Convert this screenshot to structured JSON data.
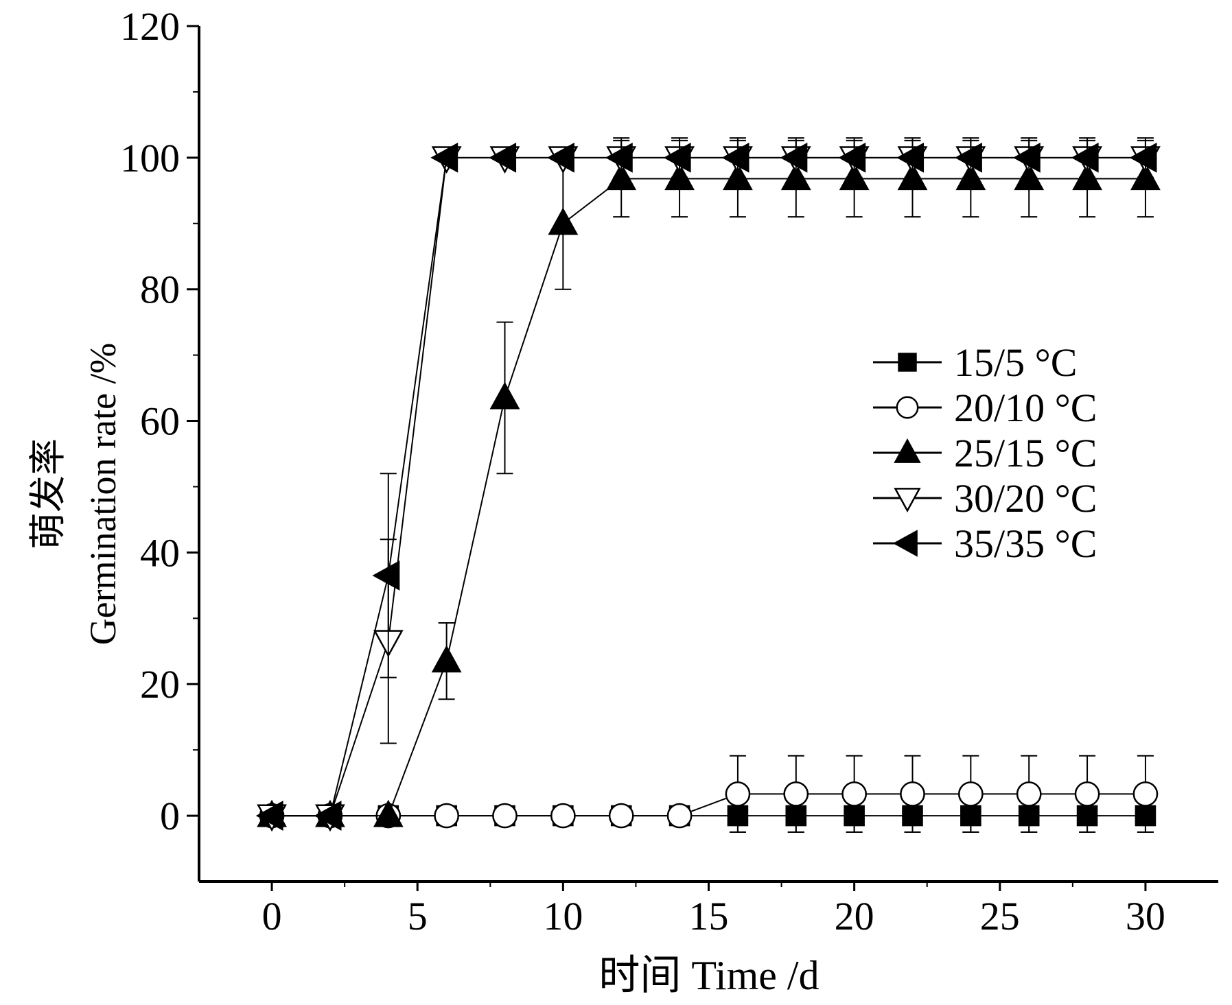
{
  "chart_data": {
    "type": "line",
    "xlabel": "时间 Time /d",
    "ylabel_cn": "萌发率",
    "ylabel_en": "Germination rate /%",
    "xlim": [
      -2.5,
      32.5
    ],
    "ylim": [
      -10,
      120
    ],
    "xticks": [
      0,
      5,
      10,
      15,
      20,
      25,
      30
    ],
    "yticks": [
      0,
      20,
      40,
      60,
      80,
      100,
      120
    ],
    "grid": false,
    "legend_position": "right",
    "series": [
      {
        "name": "15/5 °C",
        "marker": "square-filled",
        "points": [
          [
            0,
            0
          ],
          [
            2,
            0
          ],
          [
            4,
            0
          ],
          [
            6,
            0
          ],
          [
            8,
            0
          ],
          [
            10,
            0
          ],
          [
            12,
            0
          ],
          [
            14,
            0
          ],
          [
            16,
            0
          ],
          [
            18,
            0
          ],
          [
            20,
            0
          ],
          [
            22,
            0
          ],
          [
            24,
            0
          ],
          [
            26,
            0
          ],
          [
            28,
            0
          ],
          [
            30,
            0
          ]
        ],
        "errors": [
          [
            16,
            2.5
          ],
          [
            18,
            2.5
          ],
          [
            20,
            2.5
          ],
          [
            22,
            2.5
          ],
          [
            24,
            2.5
          ],
          [
            26,
            2.5
          ],
          [
            28,
            2.5
          ],
          [
            30,
            2.5
          ]
        ]
      },
      {
        "name": "20/10 °C",
        "marker": "circle-open",
        "points": [
          [
            0,
            0
          ],
          [
            2,
            0
          ],
          [
            4,
            0
          ],
          [
            6,
            0
          ],
          [
            8,
            0
          ],
          [
            10,
            0
          ],
          [
            12,
            0
          ],
          [
            14,
            0
          ],
          [
            16,
            3.3
          ],
          [
            18,
            3.3
          ],
          [
            20,
            3.3
          ],
          [
            22,
            3.3
          ],
          [
            24,
            3.3
          ],
          [
            26,
            3.3
          ],
          [
            28,
            3.3
          ],
          [
            30,
            3.3
          ]
        ],
        "errors": [
          [
            16,
            5.8
          ],
          [
            18,
            5.8
          ],
          [
            20,
            5.8
          ],
          [
            22,
            5.8
          ],
          [
            24,
            5.8
          ],
          [
            26,
            5.8
          ],
          [
            28,
            5.8
          ],
          [
            30,
            5.8
          ]
        ]
      },
      {
        "name": "25/15 °C",
        "marker": "triangle-up-filled",
        "points": [
          [
            0,
            0
          ],
          [
            2,
            0
          ],
          [
            4,
            0
          ],
          [
            6,
            23.5
          ],
          [
            8,
            63.5
          ],
          [
            10,
            90
          ],
          [
            12,
            96.8
          ],
          [
            14,
            96.8
          ],
          [
            16,
            96.8
          ],
          [
            18,
            96.8
          ],
          [
            20,
            96.8
          ],
          [
            22,
            96.8
          ],
          [
            24,
            96.8
          ],
          [
            26,
            96.8
          ],
          [
            28,
            96.8
          ],
          [
            30,
            96.8
          ]
        ],
        "errors": [
          [
            6,
            5.8
          ],
          [
            8,
            11.5
          ],
          [
            10,
            10
          ],
          [
            12,
            5.8
          ],
          [
            14,
            5.8
          ],
          [
            16,
            5.8
          ],
          [
            18,
            5.8
          ],
          [
            20,
            5.8
          ],
          [
            22,
            5.8
          ],
          [
            24,
            5.8
          ],
          [
            26,
            5.8
          ],
          [
            28,
            5.8
          ],
          [
            30,
            5.8
          ]
        ]
      },
      {
        "name": "30/20 °C",
        "marker": "triangle-down-open",
        "points": [
          [
            0,
            0
          ],
          [
            2,
            0
          ],
          [
            4,
            26.5
          ],
          [
            6,
            100
          ],
          [
            8,
            100
          ],
          [
            10,
            100
          ],
          [
            12,
            100
          ],
          [
            14,
            100
          ],
          [
            16,
            100
          ],
          [
            18,
            100
          ],
          [
            20,
            100
          ],
          [
            22,
            100
          ],
          [
            24,
            100
          ],
          [
            26,
            100
          ],
          [
            28,
            100
          ],
          [
            30,
            100
          ]
        ],
        "errors": [
          [
            4,
            15.5
          ]
        ]
      },
      {
        "name": "35/35 °C",
        "marker": "triangle-left-filled",
        "points": [
          [
            0,
            0
          ],
          [
            2,
            0
          ],
          [
            4,
            36.5
          ],
          [
            6,
            100
          ],
          [
            8,
            100
          ],
          [
            10,
            100
          ],
          [
            12,
            100
          ],
          [
            14,
            100
          ],
          [
            16,
            100
          ],
          [
            18,
            100
          ],
          [
            20,
            100
          ],
          [
            22,
            100
          ],
          [
            24,
            100
          ],
          [
            26,
            100
          ],
          [
            28,
            100
          ],
          [
            30,
            100
          ]
        ],
        "errors": [
          [
            4,
            15.5
          ],
          [
            12,
            3
          ],
          [
            14,
            3
          ],
          [
            16,
            3
          ],
          [
            18,
            3
          ],
          [
            20,
            3
          ],
          [
            22,
            3
          ],
          [
            24,
            3
          ],
          [
            26,
            3
          ],
          [
            28,
            3
          ],
          [
            30,
            3
          ]
        ]
      }
    ]
  }
}
